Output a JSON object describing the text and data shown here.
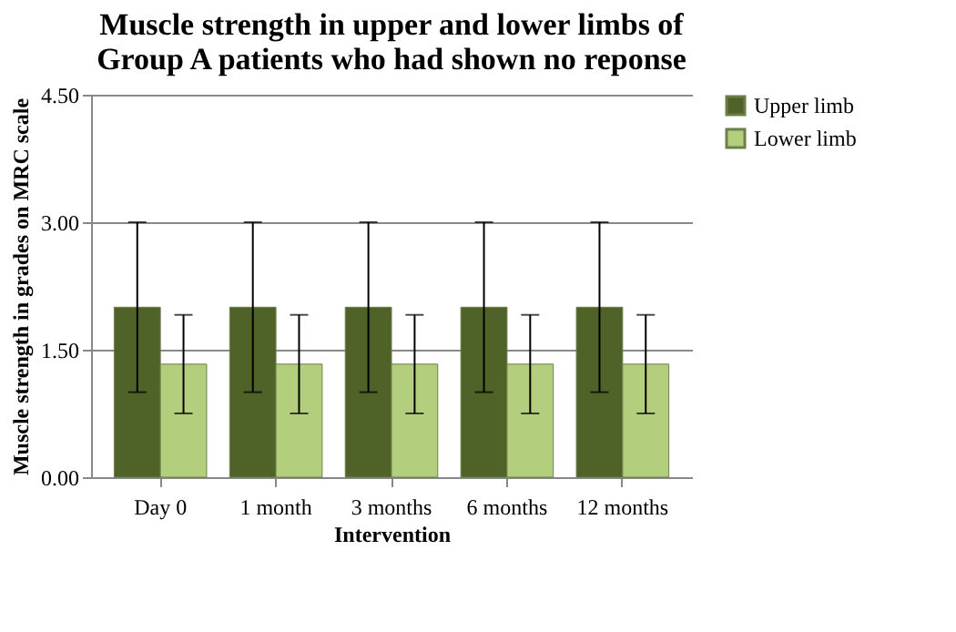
{
  "chart_data": {
    "type": "bar",
    "title": "Muscle strength in upper  and lower limbs of Group A patients who had shown no reponse",
    "xlabel": "Intervention",
    "ylabel": "Muscle strength in grades on MRC scale",
    "categories": [
      "Day 0",
      "1 month",
      "3 months",
      "6 months",
      "12 months"
    ],
    "series": [
      {
        "name": "Upper limb",
        "color": "#4f6228",
        "values": [
          2,
          2,
          2,
          2,
          2
        ],
        "errors": [
          1,
          1,
          1,
          1,
          1
        ]
      },
      {
        "name": "Lower limb",
        "color": "#b3cf7e",
        "values": [
          1.33,
          1.33,
          1.33,
          1.33,
          1.33
        ],
        "errors": [
          0.58,
          0.58,
          0.58,
          0.58,
          0.58
        ]
      }
    ],
    "ylim": [
      0,
      4.5
    ],
    "yticks": [
      {
        "value": 0,
        "label": "0.00"
      },
      {
        "value": 1.5,
        "label": "1.50"
      },
      {
        "value": 3,
        "label": "3.00"
      },
      {
        "value": 4.5,
        "label": "4.50"
      }
    ],
    "grid": "y",
    "legend": "right"
  }
}
